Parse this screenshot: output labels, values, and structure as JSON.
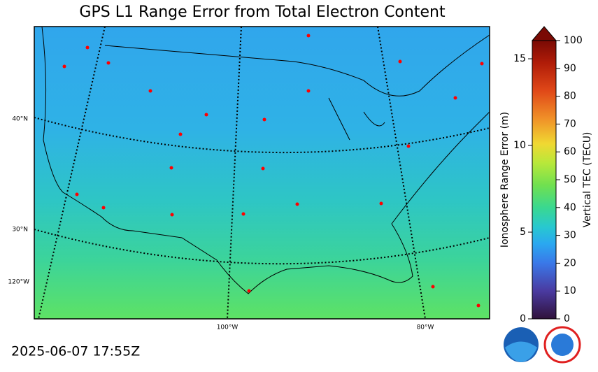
{
  "title": "GPS L1 Range Error from Total Electron Content",
  "timestamp": "2025-06-07 17:55Z",
  "map": {
    "lat_labels": [
      "40°N",
      "30°N",
      "120°W"
    ],
    "lon_labels": [
      "100°W",
      "80°W"
    ]
  },
  "colorbar": {
    "left_label": "Ionosphere Range Error (m)",
    "left_lim": [
      0,
      16.05
    ],
    "left_ticks": [
      0,
      5,
      10,
      15
    ],
    "right_label": "Vertical TEC (TECU)",
    "right_lim": [
      0,
      100
    ],
    "right_ticks": [
      0,
      10,
      20,
      30,
      40,
      50,
      60,
      70,
      80,
      90,
      100
    ]
  }
}
